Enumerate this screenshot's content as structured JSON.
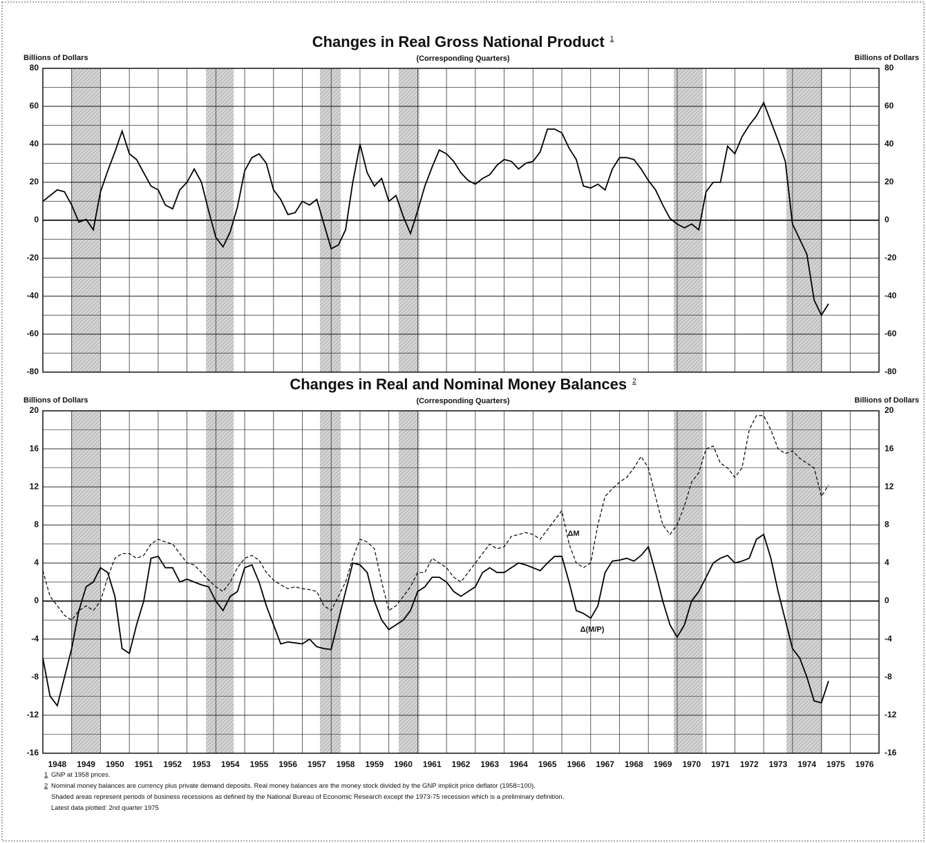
{
  "chart_data": [
    {
      "type": "line",
      "title": "Changes in Real Gross National Product",
      "title_note": "1",
      "subtitle": "(Corresponding Quarters)",
      "ylabel": "Billions of Dollars",
      "y2label": "Billions of Dollars",
      "xlim": [
        1948,
        1977
      ],
      "xticks": [
        1948,
        1949,
        1950,
        1951,
        1952,
        1953,
        1954,
        1955,
        1956,
        1957,
        1958,
        1959,
        1960,
        1961,
        1962,
        1963,
        1964,
        1965,
        1966,
        1967,
        1968,
        1969,
        1970,
        1971,
        1972,
        1973,
        1974,
        1975,
        1976,
        1977
      ],
      "xtick_labels": false,
      "ylim": [
        -80,
        80
      ],
      "yticks": [
        -80,
        -60,
        -40,
        -20,
        0,
        20,
        40,
        60,
        80
      ],
      "minor_yticks": [
        -70,
        -50,
        -30,
        -10,
        10,
        30,
        50,
        70
      ],
      "grid": true,
      "shaded_periods": [
        [
          1948.98,
          1949.99
        ],
        [
          1953.66,
          1954.62
        ],
        [
          1957.61,
          1958.33
        ],
        [
          1960.34,
          1961.06
        ],
        [
          1969.88,
          1970.89
        ],
        [
          1973.79,
          1975.04
        ]
      ],
      "x": [
        1948,
        1948.25,
        1948.5,
        1948.75,
        1949,
        1949.25,
        1949.5,
        1949.75,
        1950,
        1950.25,
        1950.5,
        1950.75,
        1951,
        1951.25,
        1951.5,
        1951.75,
        1952,
        1952.25,
        1952.5,
        1952.75,
        1953,
        1953.25,
        1953.5,
        1953.75,
        1954,
        1954.25,
        1954.5,
        1954.75,
        1955,
        1955.25,
        1955.5,
        1955.75,
        1956,
        1956.25,
        1956.5,
        1956.75,
        1957,
        1957.25,
        1957.5,
        1957.75,
        1958,
        1958.25,
        1958.5,
        1958.75,
        1959,
        1959.25,
        1959.5,
        1959.75,
        1960,
        1960.25,
        1960.5,
        1960.75,
        1961,
        1961.25,
        1961.5,
        1961.75,
        1962,
        1962.25,
        1962.5,
        1962.75,
        1963,
        1963.25,
        1963.5,
        1963.75,
        1964,
        1964.25,
        1964.5,
        1964.75,
        1965,
        1965.25,
        1965.5,
        1965.75,
        1966,
        1966.25,
        1966.5,
        1966.75,
        1967,
        1967.25,
        1967.5,
        1967.75,
        1968,
        1968.25,
        1968.5,
        1968.75,
        1969,
        1969.25,
        1969.5,
        1969.75,
        1970,
        1970.25,
        1970.5,
        1970.75,
        1971,
        1971.25,
        1971.5,
        1971.75,
        1972,
        1972.25,
        1972.5,
        1972.75,
        1973,
        1973.25,
        1973.5,
        1973.75,
        1974,
        1974.25,
        1974.5,
        1974.75,
        1975,
        1975.25
      ],
      "series": [
        {
          "color": "#000000",
          "dashed": false,
          "values": [
            10,
            13,
            16,
            15,
            8,
            -1,
            0.5,
            -5,
            15,
            26,
            36,
            47,
            35,
            32,
            25,
            18,
            16,
            8,
            6,
            16,
            20,
            27,
            20,
            5,
            -9,
            -14,
            -6,
            7,
            26,
            33,
            35,
            30,
            16,
            11,
            3,
            4,
            10,
            8,
            11,
            -2,
            -15,
            -13,
            -5,
            20,
            40,
            25,
            18,
            22,
            10,
            13,
            2,
            -7,
            5,
            18,
            28,
            37,
            35,
            31,
            25,
            21,
            19,
            22,
            24,
            29,
            32,
            31,
            27,
            30,
            31,
            36,
            48,
            48,
            46,
            38,
            32,
            18,
            17,
            19,
            16,
            27,
            33,
            33,
            32,
            27,
            21,
            16,
            8,
            1,
            -2,
            -4,
            -2,
            -5,
            15,
            20,
            20,
            39,
            35,
            44,
            50,
            55,
            62,
            52,
            42,
            31,
            -2,
            -10,
            -18,
            -42,
            -50,
            -44
          ]
        }
      ]
    },
    {
      "type": "line",
      "title": "Changes in Real and Nominal Money Balances",
      "title_note": "2",
      "subtitle": "(Corresponding Quarters)",
      "ylabel": "Billions of Dollars",
      "y2label": "Billions of Dollars",
      "xlim": [
        1948,
        1977
      ],
      "xticks": [
        1948,
        1949,
        1950,
        1951,
        1952,
        1953,
        1954,
        1955,
        1956,
        1957,
        1958,
        1959,
        1960,
        1961,
        1962,
        1963,
        1964,
        1965,
        1966,
        1967,
        1968,
        1969,
        1970,
        1971,
        1972,
        1973,
        1974,
        1975,
        1976,
        1977
      ],
      "xtick_labels": true,
      "ylim": [
        -16,
        20
      ],
      "yticks": [
        -16,
        -12,
        -8,
        -4,
        0,
        4,
        8,
        12,
        16,
        20
      ],
      "minor_yticks": [
        -14,
        -10,
        -6,
        -2,
        2,
        6,
        10,
        14,
        18
      ],
      "grid": true,
      "shaded_periods": [
        [
          1948.98,
          1949.99
        ],
        [
          1953.66,
          1954.62
        ],
        [
          1957.61,
          1958.33
        ],
        [
          1960.34,
          1961.06
        ],
        [
          1969.88,
          1970.89
        ],
        [
          1973.79,
          1975.04
        ]
      ],
      "x": [
        1948,
        1948.25,
        1948.5,
        1948.75,
        1949,
        1949.25,
        1949.5,
        1949.75,
        1950,
        1950.25,
        1950.5,
        1950.75,
        1951,
        1951.25,
        1951.5,
        1951.75,
        1952,
        1952.25,
        1952.5,
        1952.75,
        1953,
        1953.25,
        1953.5,
        1953.75,
        1954,
        1954.25,
        1954.5,
        1954.75,
        1955,
        1955.25,
        1955.5,
        1955.75,
        1956,
        1956.25,
        1956.5,
        1956.75,
        1957,
        1957.25,
        1957.5,
        1957.75,
        1958,
        1958.25,
        1958.5,
        1958.75,
        1959,
        1959.25,
        1959.5,
        1959.75,
        1960,
        1960.25,
        1960.5,
        1960.75,
        1961,
        1961.25,
        1961.5,
        1961.75,
        1962,
        1962.25,
        1962.5,
        1962.75,
        1963,
        1963.25,
        1963.5,
        1963.75,
        1964,
        1964.25,
        1964.5,
        1964.75,
        1965,
        1965.25,
        1965.5,
        1965.75,
        1966,
        1966.25,
        1966.5,
        1966.75,
        1967,
        1967.25,
        1967.5,
        1967.75,
        1968,
        1968.25,
        1968.5,
        1968.75,
        1969,
        1969.25,
        1969.5,
        1969.75,
        1970,
        1970.25,
        1970.5,
        1970.75,
        1971,
        1971.25,
        1971.5,
        1971.75,
        1972,
        1972.25,
        1972.5,
        1972.75,
        1973,
        1973.25,
        1973.5,
        1973.75,
        1974,
        1974.25,
        1974.5,
        1974.75,
        1975,
        1975.25
      ],
      "series": [
        {
          "name": "ΔM",
          "color": "#000000",
          "dashed": true,
          "values": [
            3.2,
            0.5,
            -0.5,
            -1.5,
            -2,
            -1,
            -0.5,
            -1,
            0,
            2.5,
            4.5,
            5,
            5,
            4.5,
            4.8,
            6,
            6.5,
            6.2,
            6,
            5,
            4,
            3.8,
            3,
            2.2,
            1.5,
            1,
            2,
            3.5,
            4.5,
            4.8,
            4.3,
            3,
            2.2,
            1.7,
            1.3,
            1.5,
            1.3,
            1.2,
            1,
            -0.5,
            -1,
            0.5,
            2,
            4.5,
            6.5,
            6.2,
            5.5,
            2,
            -1,
            -0.5,
            0.5,
            1.5,
            3,
            3,
            4.5,
            4,
            3.5,
            2.5,
            2,
            3,
            4,
            5,
            6,
            5.5,
            5.7,
            6.8,
            7,
            7.2,
            7,
            6.5,
            7.5,
            8.5,
            9.5,
            6,
            4,
            3.5,
            4,
            8,
            11,
            11.8,
            12.5,
            13,
            14,
            15.2,
            14,
            11,
            8,
            7,
            8,
            10,
            12.5,
            13.5,
            16,
            16.3,
            14.5,
            14,
            13,
            14,
            18,
            19.5,
            19.5,
            18,
            16,
            15.5,
            15.8,
            15,
            14.5,
            14,
            11,
            12.2
          ]
        },
        {
          "name": "Δ(M/P)",
          "color": "#000000",
          "dashed": false,
          "values": [
            -6,
            -10,
            -11,
            -8,
            -5,
            -1,
            1.5,
            2,
            3.5,
            3,
            0.5,
            -5,
            -5.5,
            -2.5,
            0,
            4.5,
            4.7,
            3.5,
            3.5,
            2,
            2.3,
            2,
            1.7,
            1.5,
            0,
            -1,
            0.5,
            1,
            3.5,
            3.8,
            2,
            -0.5,
            -2.5,
            -4.5,
            -4.3,
            -4.4,
            -4.5,
            -4,
            -4.8,
            -5,
            -5.1,
            -2,
            1,
            4,
            3.8,
            3,
            0,
            -2,
            -3,
            -2.5,
            -2,
            -1,
            1,
            1.5,
            2.5,
            2.5,
            2,
            1,
            0.5,
            1,
            1.5,
            3,
            3.5,
            3,
            3,
            3.5,
            4,
            3.8,
            3.5,
            3.2,
            4,
            4.7,
            4.7,
            2,
            -1,
            -1.3,
            -1.8,
            -0.5,
            3,
            4.2,
            4.3,
            4.5,
            4.2,
            4.8,
            5.7,
            3,
            0,
            -2.5,
            -3.8,
            -2.5,
            0,
            1,
            2.5,
            4,
            4.5,
            4.8,
            4,
            4.2,
            4.5,
            6.5,
            7,
            4.5,
            1,
            -2,
            -5,
            -6,
            -8,
            -10.5,
            -10.7,
            -8.4
          ]
        }
      ]
    }
  ],
  "footnotes": [
    {
      "marker": "1",
      "text": "GNP at 1958 prices."
    },
    {
      "marker": "2",
      "text": "Nominal money balances are currency plus private demand deposits. Real money balances are the money stock divided by the GNP implicit price deflator (1958=100)."
    }
  ],
  "notes": [
    "Shaded areas represent periods of business recessions as defined by the National Bureau of Economic Research except the 1973-75 recession which is a preliminary definition.",
    "Latest data plotted: 2nd quarter 1975"
  ]
}
